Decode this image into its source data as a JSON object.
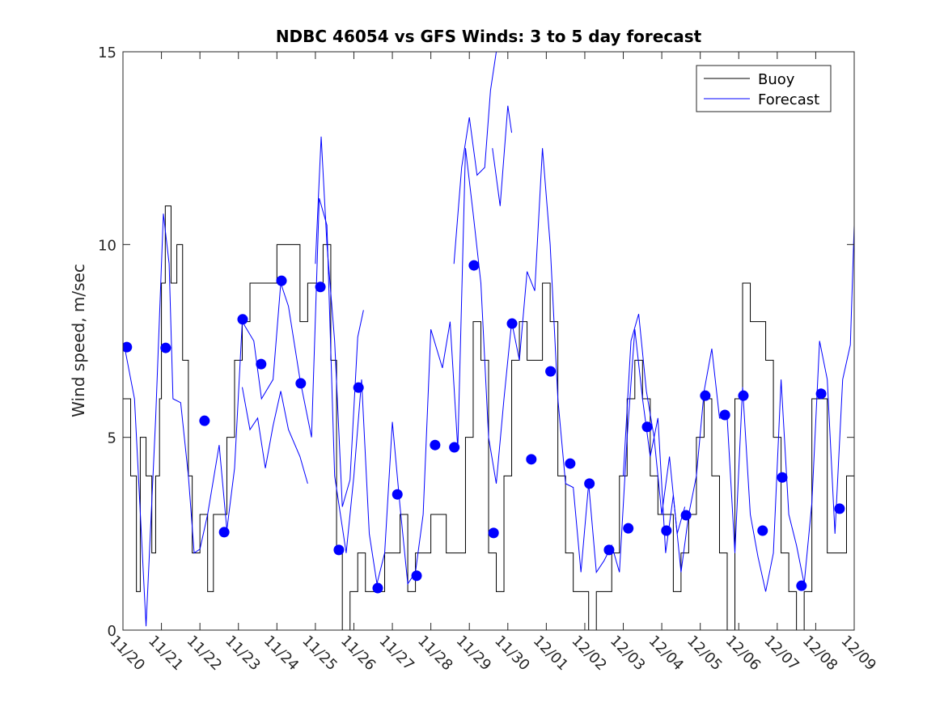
{
  "chart_data": {
    "type": "line",
    "title": "NDBC 46054 vs GFS Winds: 3 to 5 day forecast",
    "xlabel": "",
    "ylabel": "Wind speed, m/sec",
    "xlim": [
      0,
      19
    ],
    "ylim": [
      0,
      15
    ],
    "x_unit": "days since 11/20",
    "x_tick_labels": [
      "11/20",
      "11/21",
      "11/22",
      "11/23",
      "11/24",
      "11/25",
      "11/26",
      "11/27",
      "11/28",
      "11/29",
      "11/30",
      "12/01",
      "12/02",
      "12/03",
      "12/04",
      "12/05",
      "12/06",
      "12/07",
      "12/08",
      "12/09"
    ],
    "y_ticks": [
      0,
      5,
      10,
      15
    ],
    "y_tick_labels": [
      "0",
      "5",
      "10",
      "15"
    ],
    "legend": {
      "placement": "top-right",
      "entries": [
        "Buoy",
        "Forecast"
      ]
    },
    "colors": {
      "buoy": "#000000",
      "forecast": "#0000ff",
      "markers": "#0000ff"
    },
    "series": [
      {
        "name": "Buoy",
        "style": "step",
        "points": [
          [
            0,
            6
          ],
          [
            0.2,
            4
          ],
          [
            0.35,
            1
          ],
          [
            0.45,
            5
          ],
          [
            0.6,
            4
          ],
          [
            0.75,
            2
          ],
          [
            0.85,
            4
          ],
          [
            0.95,
            6
          ],
          [
            1.0,
            9
          ],
          [
            1.1,
            11
          ],
          [
            1.25,
            9
          ],
          [
            1.4,
            10
          ],
          [
            1.55,
            7
          ],
          [
            1.7,
            4
          ],
          [
            1.8,
            2
          ],
          [
            2.0,
            3
          ],
          [
            2.2,
            1
          ],
          [
            2.35,
            3
          ],
          [
            2.55,
            3
          ],
          [
            2.7,
            5
          ],
          [
            2.9,
            7
          ],
          [
            3.1,
            8
          ],
          [
            3.3,
            9
          ],
          [
            3.5,
            9
          ],
          [
            3.8,
            9
          ],
          [
            4.0,
            10
          ],
          [
            4.2,
            10
          ],
          [
            4.4,
            10
          ],
          [
            4.6,
            8
          ],
          [
            4.8,
            9
          ],
          [
            5.0,
            9
          ],
          [
            5.2,
            10
          ],
          [
            5.4,
            7
          ],
          [
            5.55,
            2
          ],
          [
            5.7,
            0
          ],
          [
            5.9,
            1
          ],
          [
            6.1,
            2
          ],
          [
            6.3,
            1
          ],
          [
            6.5,
            1
          ],
          [
            6.8,
            2
          ],
          [
            7.0,
            2
          ],
          [
            7.2,
            3
          ],
          [
            7.4,
            1
          ],
          [
            7.6,
            2
          ],
          [
            7.8,
            2
          ],
          [
            8.0,
            3
          ],
          [
            8.2,
            3
          ],
          [
            8.4,
            2
          ],
          [
            8.7,
            2
          ],
          [
            8.9,
            5
          ],
          [
            9.1,
            8
          ],
          [
            9.3,
            7
          ],
          [
            9.5,
            2
          ],
          [
            9.7,
            1
          ],
          [
            9.9,
            4
          ],
          [
            10.1,
            7
          ],
          [
            10.3,
            8
          ],
          [
            10.5,
            7
          ],
          [
            10.7,
            7
          ],
          [
            10.9,
            9
          ],
          [
            11.1,
            8
          ],
          [
            11.3,
            4
          ],
          [
            11.5,
            2
          ],
          [
            11.7,
            1
          ],
          [
            11.9,
            1
          ],
          [
            12.1,
            0
          ],
          [
            12.3,
            1
          ],
          [
            12.5,
            1
          ],
          [
            12.7,
            2
          ],
          [
            12.9,
            4
          ],
          [
            13.1,
            6
          ],
          [
            13.3,
            7
          ],
          [
            13.5,
            6
          ],
          [
            13.7,
            4
          ],
          [
            13.9,
            3
          ],
          [
            14.1,
            3
          ],
          [
            14.3,
            1
          ],
          [
            14.5,
            2
          ],
          [
            14.7,
            3
          ],
          [
            14.9,
            5
          ],
          [
            15.1,
            6
          ],
          [
            15.3,
            4
          ],
          [
            15.5,
            2
          ],
          [
            15.7,
            0
          ],
          [
            15.9,
            6
          ],
          [
            16.1,
            9
          ],
          [
            16.3,
            8
          ],
          [
            16.5,
            8
          ],
          [
            16.7,
            7
          ],
          [
            16.9,
            5
          ],
          [
            17.1,
            2
          ],
          [
            17.3,
            1
          ],
          [
            17.5,
            0
          ],
          [
            17.7,
            1
          ],
          [
            17.9,
            6
          ],
          [
            18.1,
            6
          ],
          [
            18.3,
            2
          ],
          [
            18.5,
            2
          ],
          [
            18.8,
            4
          ],
          [
            19,
            6
          ]
        ]
      },
      {
        "name": "Forecast",
        "style": "line",
        "points": [
          [
            0.05,
            7.3
          ],
          [
            0.3,
            6
          ],
          [
            0.6,
            0.1
          ],
          [
            0.85,
            5.5
          ],
          [
            1.05,
            10.8
          ],
          [
            1.2,
            9.5
          ],
          [
            1.3,
            6
          ],
          [
            1.5,
            5.9
          ],
          [
            1.7,
            4
          ],
          [
            1.85,
            2
          ],
          [
            2.0,
            2.1
          ],
          [
            2.2,
            3
          ],
          [
            2.5,
            4.8
          ],
          [
            2.7,
            2.6
          ],
          [
            2.9,
            4.2
          ],
          [
            3.1,
            8
          ],
          [
            3.4,
            7.5
          ],
          [
            3.6,
            6
          ],
          [
            3.9,
            6.5
          ],
          [
            4.1,
            9
          ],
          [
            4.3,
            8.4
          ],
          [
            4.6,
            6.5
          ],
          [
            4.9,
            5
          ],
          [
            5.1,
            11.2
          ],
          [
            5.3,
            10.5
          ],
          [
            5.5,
            4
          ],
          [
            5.8,
            2
          ],
          [
            6.0,
            4
          ],
          [
            6.2,
            6.5
          ],
          [
            6.4,
            2.5
          ],
          [
            6.6,
            1.2
          ],
          [
            6.8,
            2
          ],
          [
            7.0,
            5.4
          ],
          [
            7.2,
            3.2
          ],
          [
            7.4,
            1.2
          ],
          [
            7.6,
            1.5
          ],
          [
            7.8,
            3
          ],
          [
            8.0,
            7.8
          ],
          [
            8.3,
            6.8
          ],
          [
            8.5,
            8
          ],
          [
            8.7,
            4.7
          ],
          [
            8.9,
            12.5
          ],
          [
            9.1,
            10.8
          ],
          [
            9.3,
            9
          ],
          [
            9.5,
            5
          ],
          [
            9.7,
            3.8
          ],
          [
            9.9,
            6
          ],
          [
            10.1,
            8
          ],
          [
            10.3,
            7
          ],
          [
            10.5,
            9.3
          ],
          [
            10.7,
            8.8
          ],
          [
            10.9,
            12.5
          ],
          [
            11.1,
            10
          ],
          [
            11.3,
            6
          ],
          [
            11.5,
            3.8
          ],
          [
            11.7,
            3.7
          ],
          [
            11.9,
            1.5
          ],
          [
            12.1,
            3.8
          ],
          [
            12.3,
            1.5
          ],
          [
            12.5,
            1.8
          ],
          [
            12.7,
            2.2
          ],
          [
            12.9,
            1.5
          ],
          [
            13.1,
            5
          ],
          [
            13.3,
            7.8
          ],
          [
            13.5,
            6
          ],
          [
            13.7,
            4.5
          ],
          [
            13.9,
            5.5
          ],
          [
            14.1,
            2
          ],
          [
            14.3,
            3.5
          ],
          [
            14.5,
            1.5
          ],
          [
            14.7,
            3
          ],
          [
            14.9,
            4
          ],
          [
            15.1,
            6.2
          ],
          [
            15.3,
            7.3
          ],
          [
            15.5,
            5.5
          ],
          [
            15.7,
            5.5
          ],
          [
            15.9,
            2
          ],
          [
            16.1,
            6.3
          ],
          [
            16.3,
            3
          ],
          [
            16.5,
            1.9
          ],
          [
            16.7,
            1
          ],
          [
            16.9,
            2
          ],
          [
            17.1,
            6.5
          ],
          [
            17.3,
            3
          ],
          [
            17.5,
            2.2
          ],
          [
            17.7,
            1.2
          ],
          [
            17.9,
            3.3
          ],
          [
            18.1,
            7.5
          ],
          [
            18.3,
            6.5
          ],
          [
            18.5,
            2.5
          ],
          [
            18.7,
            6.5
          ],
          [
            18.9,
            7.4
          ],
          [
            19,
            10.5
          ]
        ]
      },
      {
        "name": "Forecast",
        "style": "line",
        "points": [
          [
            3.1,
            6.3
          ],
          [
            3.3,
            5.2
          ],
          [
            3.5,
            5.5
          ],
          [
            3.7,
            4.2
          ],
          [
            3.9,
            5.3
          ],
          [
            4.1,
            6.2
          ],
          [
            4.3,
            5.2
          ],
          [
            4.6,
            4.5
          ],
          [
            4.8,
            3.8
          ]
        ]
      },
      {
        "name": "Forecast",
        "style": "line",
        "points": [
          [
            5.0,
            9.5
          ],
          [
            5.15,
            12.8
          ],
          [
            5.3,
            10
          ],
          [
            5.5,
            7.5
          ],
          [
            5.7,
            3.2
          ],
          [
            5.9,
            3.9
          ],
          [
            6.1,
            7.6
          ],
          [
            6.25,
            8.3
          ]
        ]
      },
      {
        "name": "Forecast",
        "style": "line",
        "points": [
          [
            8.6,
            9.5
          ],
          [
            8.8,
            12
          ],
          [
            9.0,
            13.3
          ],
          [
            9.2,
            11.8
          ],
          [
            9.4,
            12
          ],
          [
            9.55,
            14
          ],
          [
            9.7,
            15
          ]
        ]
      },
      {
        "name": "Forecast",
        "style": "line",
        "points": [
          [
            9.6,
            12.5
          ],
          [
            9.8,
            11
          ],
          [
            10.0,
            13.6
          ],
          [
            10.1,
            12.9
          ]
        ]
      },
      {
        "name": "Forecast",
        "style": "line",
        "points": [
          [
            13.0,
            4
          ],
          [
            13.2,
            7.5
          ],
          [
            13.4,
            8.2
          ],
          [
            13.6,
            6.2
          ],
          [
            13.8,
            5
          ],
          [
            14.0,
            3
          ],
          [
            14.2,
            4.5
          ],
          [
            14.4,
            2.5
          ],
          [
            14.6,
            3.2
          ]
        ]
      }
    ],
    "markers": {
      "name": "Forecast points",
      "points": [
        [
          0.1,
          7.34
        ],
        [
          1.11,
          7.32
        ],
        [
          2.12,
          5.43
        ],
        [
          2.63,
          2.54
        ],
        [
          3.11,
          8.06
        ],
        [
          3.59,
          6.9
        ],
        [
          4.12,
          9.06
        ],
        [
          4.62,
          6.4
        ],
        [
          5.13,
          8.9
        ],
        [
          5.61,
          2.08
        ],
        [
          6.12,
          6.29
        ],
        [
          6.62,
          1.09
        ],
        [
          7.13,
          3.52
        ],
        [
          7.63,
          1.41
        ],
        [
          8.11,
          4.8
        ],
        [
          8.61,
          4.74
        ],
        [
          9.12,
          9.46
        ],
        [
          9.63,
          2.52
        ],
        [
          10.11,
          7.95
        ],
        [
          10.61,
          4.43
        ],
        [
          11.11,
          6.71
        ],
        [
          11.62,
          4.32
        ],
        [
          12.12,
          3.8
        ],
        [
          12.63,
          2.08
        ],
        [
          13.13,
          2.64
        ],
        [
          13.62,
          5.27
        ],
        [
          14.12,
          2.58
        ],
        [
          14.63,
          2.98
        ],
        [
          15.13,
          6.08
        ],
        [
          15.64,
          5.58
        ],
        [
          16.12,
          6.08
        ],
        [
          16.62,
          2.58
        ],
        [
          17.13,
          3.96
        ],
        [
          17.63,
          1.15
        ],
        [
          18.14,
          6.13
        ],
        [
          18.62,
          3.15
        ]
      ]
    }
  }
}
